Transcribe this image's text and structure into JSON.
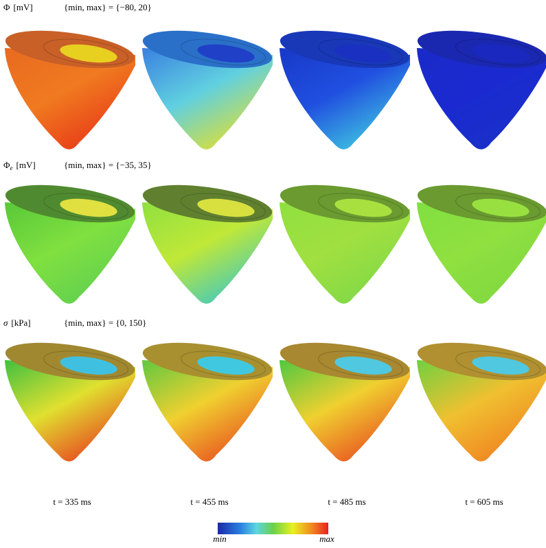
{
  "rows": [
    {
      "symbol": "Φ",
      "unit": "[mV]",
      "range": "{min, max} = {−80, 20}"
    },
    {
      "symbol": "Φ",
      "subscript": "e",
      "unit": "[mV]",
      "range": "{min, max} = {−35, 35}"
    },
    {
      "symbol": "σ",
      "unit": "[kPa]",
      "range": "{min, max} = {0, 150}"
    }
  ],
  "times": [
    "t = 335 ms",
    "t = 455 ms",
    "t = 485 ms",
    "t = 605 ms"
  ],
  "colorbar": {
    "min": "min",
    "max": "max"
  }
}
